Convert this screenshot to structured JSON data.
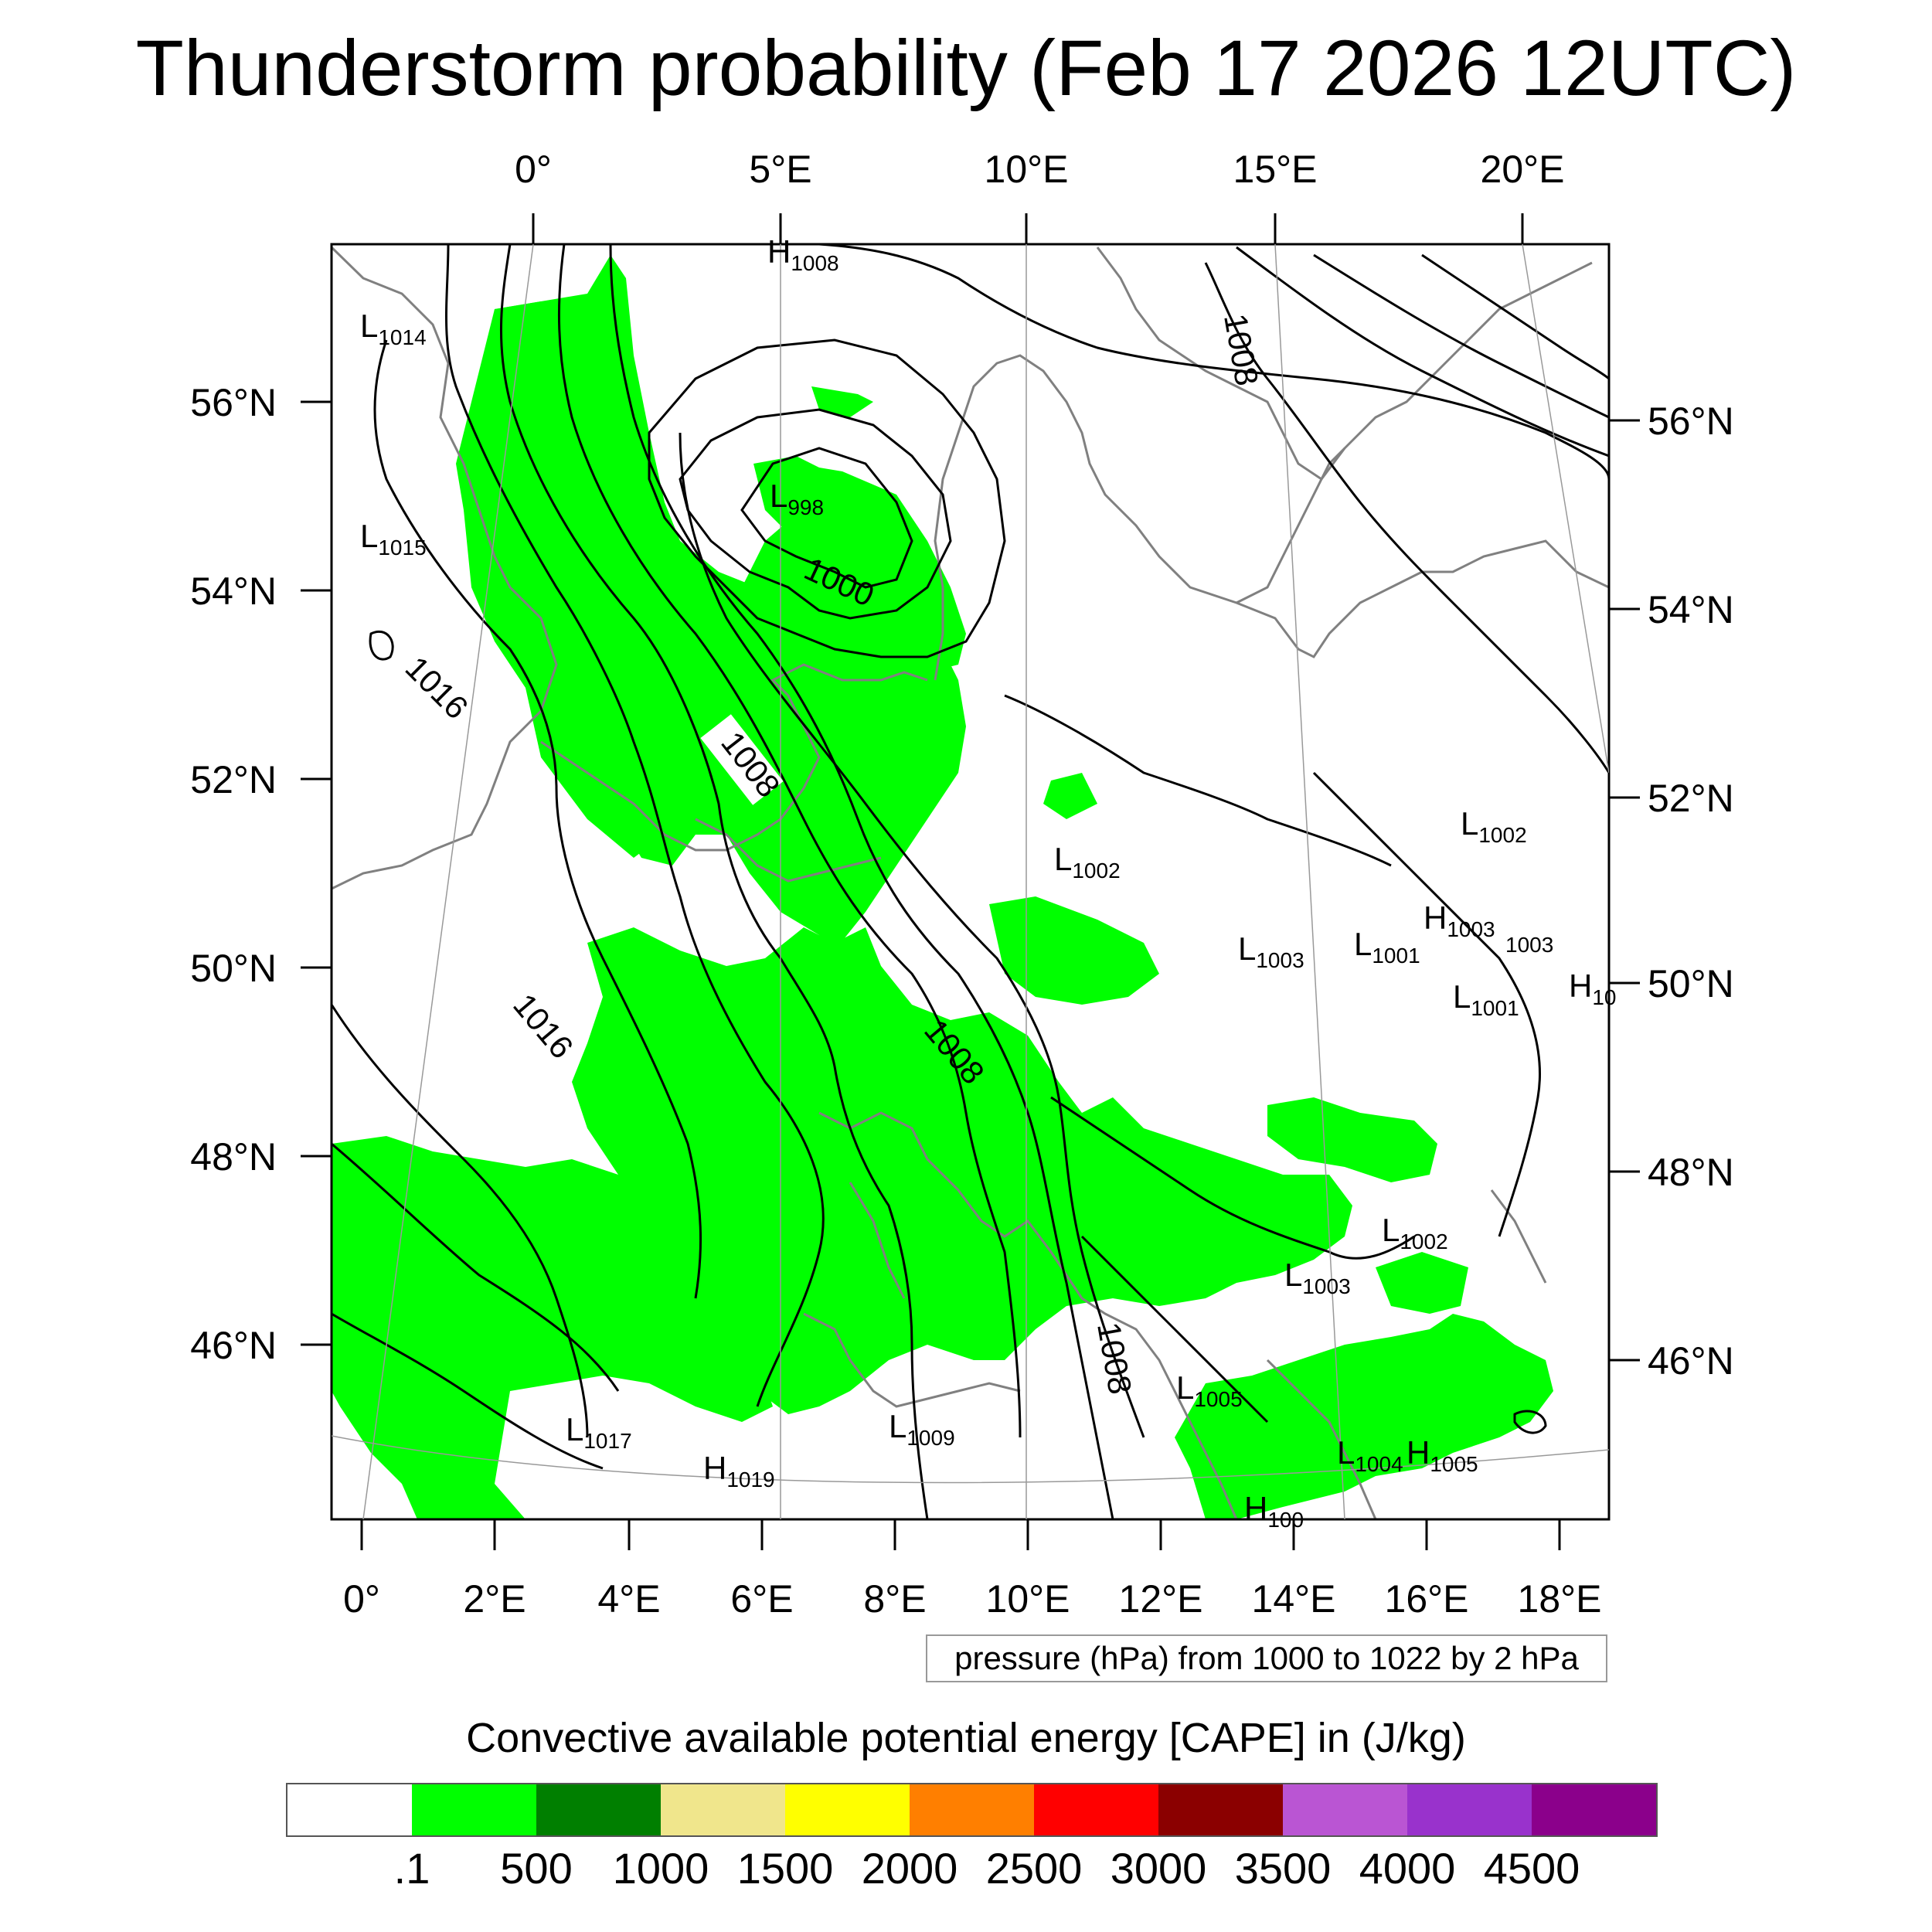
{
  "title": "Thunderstorm probability (Feb 17 2026 12UTC)",
  "top_axis_labels": [
    "0°",
    "5°E",
    "10°E",
    "15°E",
    "20°E"
  ],
  "bottom_axis_labels": [
    "0°",
    "2°E",
    "4°E",
    "6°E",
    "8°E",
    "10°E",
    "12°E",
    "14°E",
    "16°E",
    "18°E"
  ],
  "left_axis_labels": [
    "56°N",
    "54°N",
    "52°N",
    "50°N",
    "48°N",
    "46°N"
  ],
  "right_axis_labels": [
    "56°N",
    "54°N",
    "52°N",
    "50°N",
    "48°N",
    "46°N"
  ],
  "contour_labels": [
    "1008",
    "1000",
    "1016",
    "1008",
    "1016",
    "1008",
    "1008"
  ],
  "pressure_marks": [
    {
      "type": "H",
      "value": "1008"
    },
    {
      "type": "L",
      "value": "1014"
    },
    {
      "type": "L",
      "value": "998"
    },
    {
      "type": "L",
      "value": "1015"
    },
    {
      "type": "L",
      "value": "1002"
    },
    {
      "type": "L",
      "value": "1002"
    },
    {
      "type": "L",
      "value": "1003"
    },
    {
      "type": "L",
      "value": "1001"
    },
    {
      "type": "H",
      "value": "1003"
    },
    {
      "type": "",
      "value": "1003"
    },
    {
      "type": "L",
      "value": "1001"
    },
    {
      "type": "H",
      "value": "10"
    },
    {
      "type": "L",
      "value": "1002"
    },
    {
      "type": "L",
      "value": "1003"
    },
    {
      "type": "L",
      "value": "1005"
    },
    {
      "type": "L",
      "value": "1017"
    },
    {
      "type": "L",
      "value": "1009"
    },
    {
      "type": "H",
      "value": "1019"
    },
    {
      "type": "L",
      "value": "1004"
    },
    {
      "type": "H",
      "value": "1005"
    },
    {
      "type": "H",
      "value": "100"
    }
  ],
  "info_box": "pressure (hPa) from 1000 to 1022 by 2 hPa",
  "colorbar": {
    "title": "Convective available potential energy [CAPE] in (J/kg)",
    "colors": [
      "#ffffff",
      "#00ff00",
      "#007f00",
      "#f0e68c",
      "#ffff00",
      "#ff7f00",
      "#ff0000",
      "#8b0000",
      "#ba55d3",
      "#9932cc",
      "#8b008b"
    ],
    "labels": [
      ".1",
      "500",
      "1000",
      "1500",
      "2000",
      "2500",
      "3000",
      "3500",
      "4000",
      "4500"
    ]
  },
  "colors": {
    "cape_fill": "#00ff00",
    "coast": "#808080",
    "contour": "#000000"
  }
}
